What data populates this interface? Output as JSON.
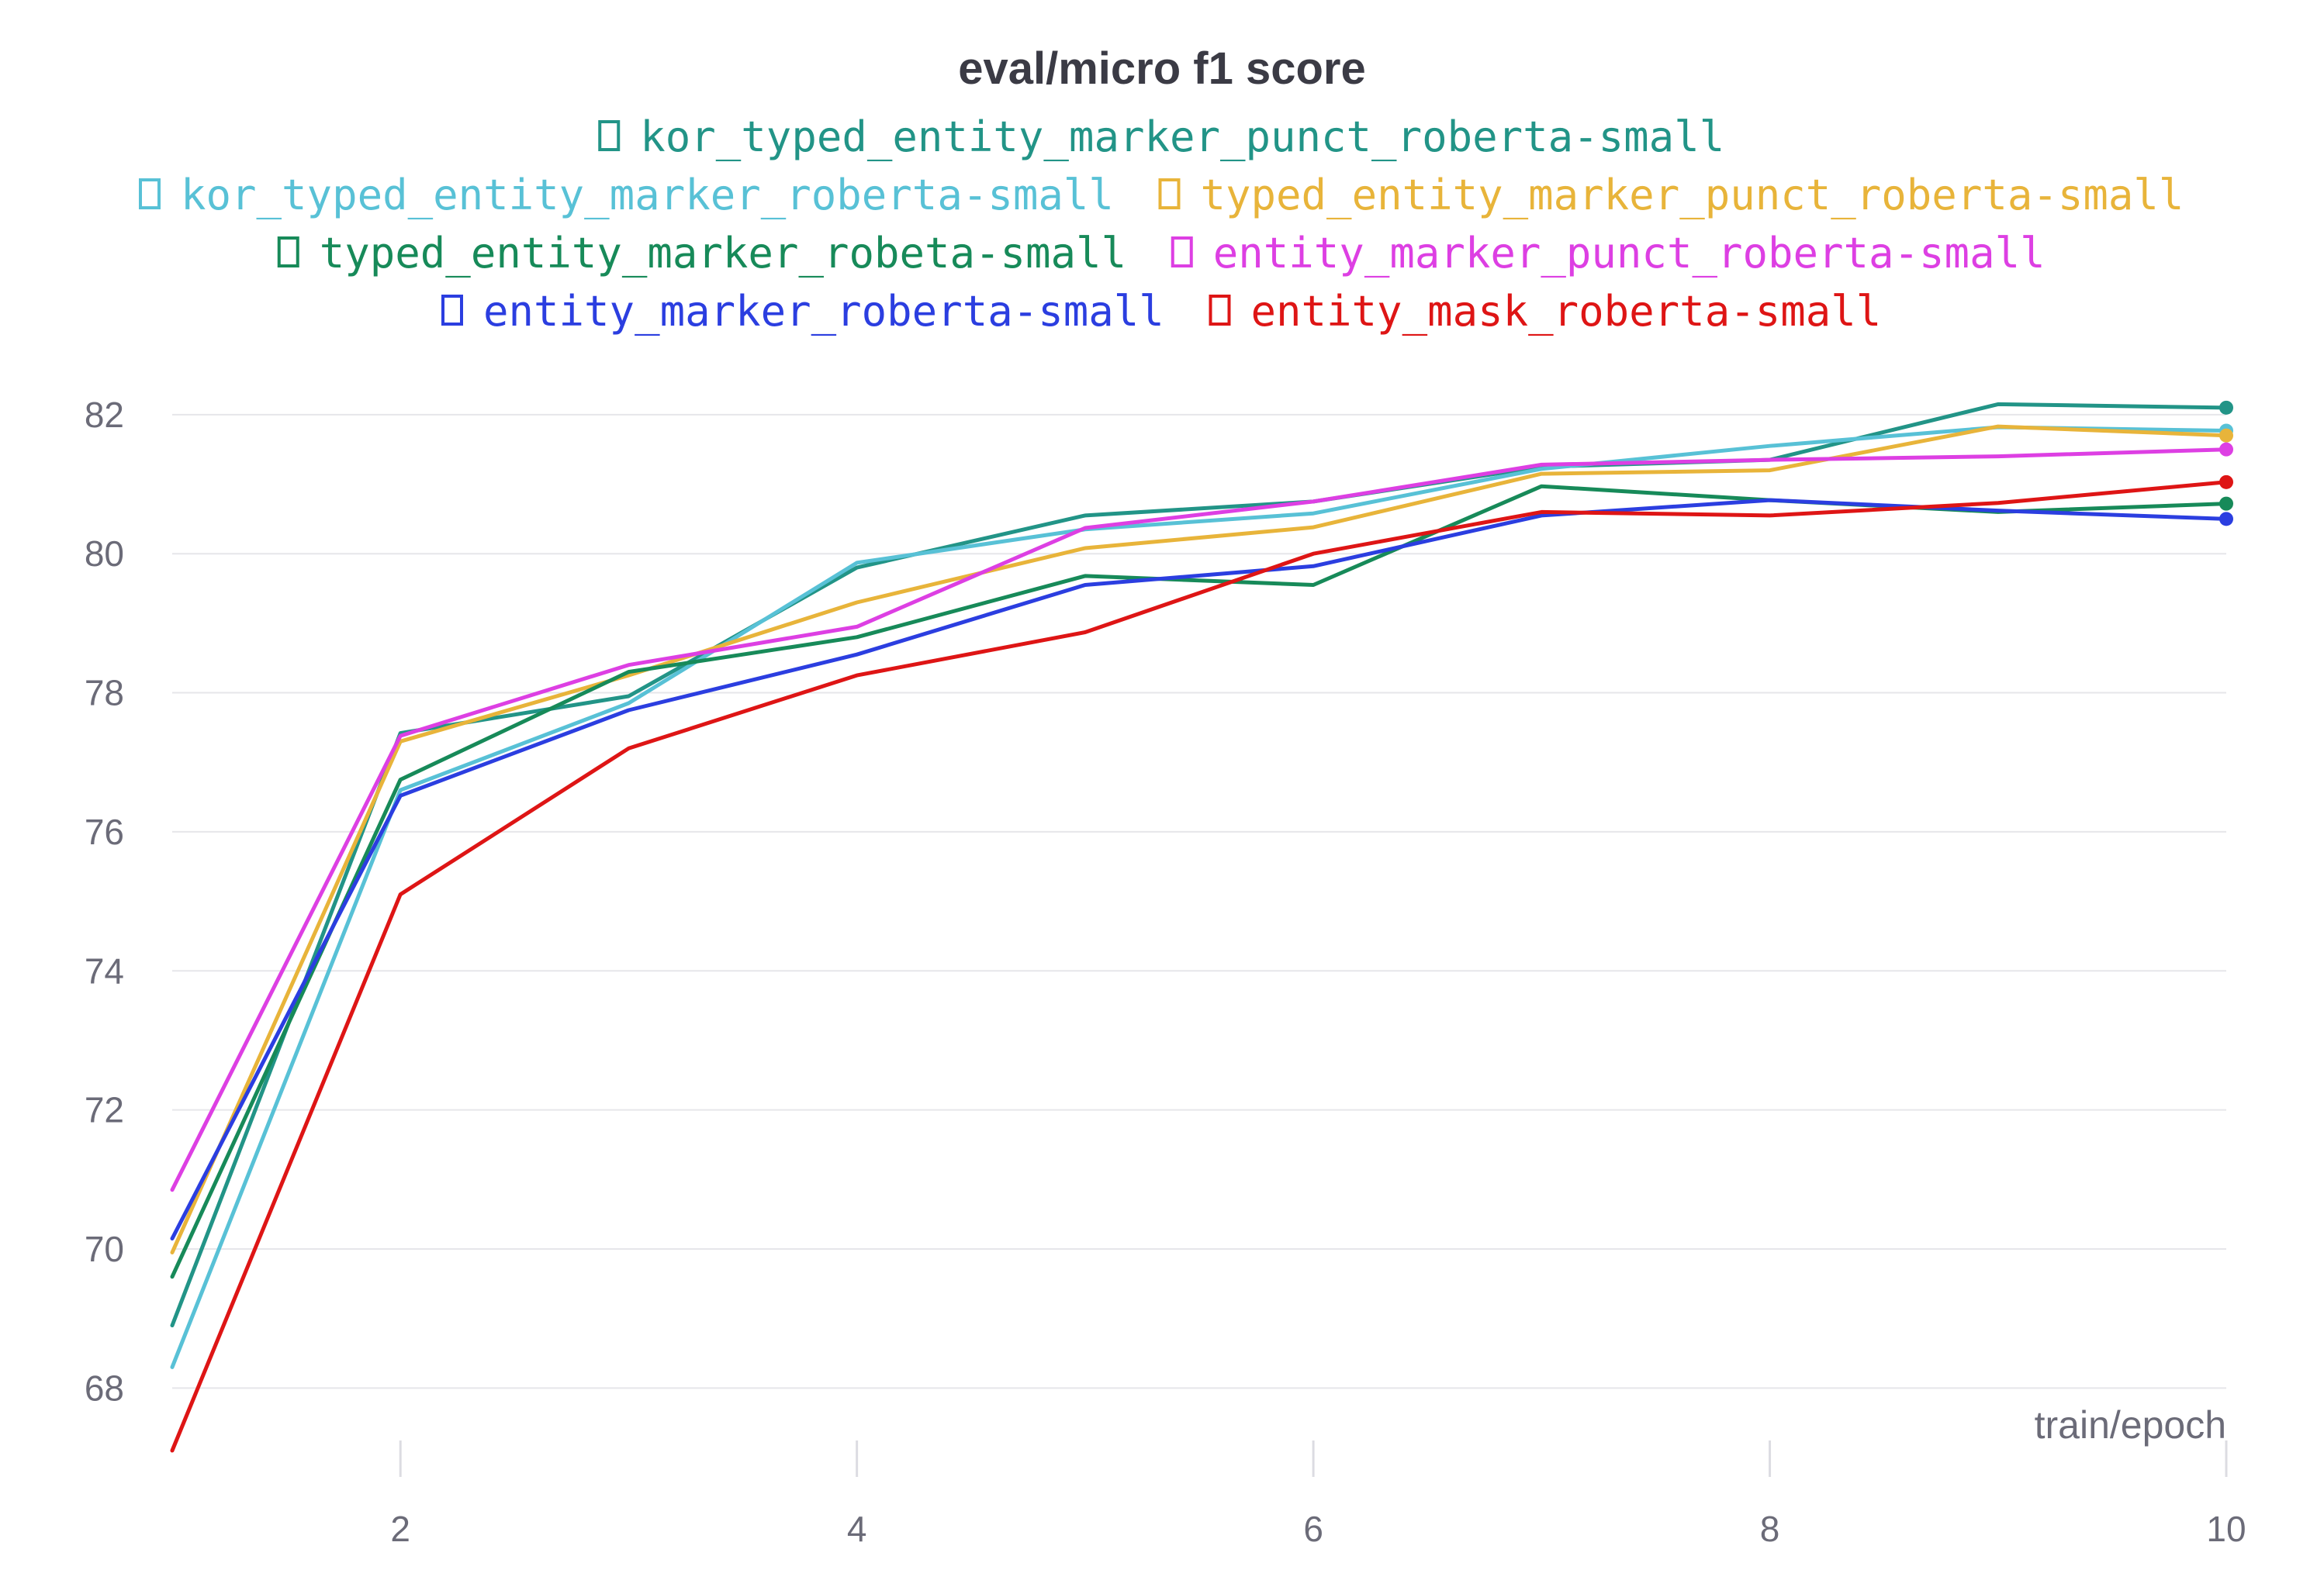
{
  "chart_data": {
    "type": "line",
    "title": "eval/micro f1 score",
    "xlabel": "train/epoch",
    "ylabel": "",
    "xlim": [
      1,
      10
    ],
    "ylim": [
      67,
      82.5
    ],
    "x_ticks": [
      2,
      4,
      6,
      8,
      10
    ],
    "y_ticks": [
      68,
      70,
      72,
      74,
      76,
      78,
      80,
      82
    ],
    "grid": "horizontal",
    "legend_position": "top",
    "x": [
      1,
      2,
      3,
      4,
      5,
      6,
      7,
      8,
      9,
      10
    ],
    "series": [
      {
        "name": "kor_typed_entity_marker_punct_roberta-small",
        "color": "#229487",
        "values": [
          68.9,
          77.42,
          77.95,
          79.8,
          80.55,
          80.75,
          81.25,
          81.35,
          82.15,
          82.1
        ]
      },
      {
        "name": "kor_typed_entity_marker_roberta-small",
        "color": "#58c1d6",
        "values": [
          68.3,
          76.6,
          77.85,
          79.87,
          80.35,
          80.58,
          81.22,
          81.55,
          81.82,
          81.77
        ]
      },
      {
        "name": "typed_entity_marker_punct_roberta-small",
        "color": "#e8b43a",
        "values": [
          69.95,
          77.3,
          78.25,
          79.3,
          80.08,
          80.38,
          81.15,
          81.2,
          81.83,
          81.7
        ]
      },
      {
        "name": "typed_entity_marker_robeta-small",
        "color": "#178a59",
        "values": [
          69.6,
          76.75,
          78.3,
          78.8,
          79.68,
          79.55,
          80.97,
          80.77,
          80.6,
          80.72
        ]
      },
      {
        "name": "entity_marker_punct_roberta-small",
        "color": "#dd3fe3",
        "values": [
          70.85,
          77.38,
          78.4,
          78.95,
          80.37,
          80.75,
          81.28,
          81.35,
          81.4,
          81.5
        ]
      },
      {
        "name": "entity_marker_roberta-small",
        "color": "#2b3ee0",
        "values": [
          70.15,
          76.52,
          77.75,
          78.55,
          79.55,
          79.82,
          80.55,
          80.77,
          80.62,
          80.5
        ]
      },
      {
        "name": "entity_mask_roberta-small",
        "color": "#de1515",
        "values": [
          67.1,
          75.1,
          77.2,
          78.25,
          78.87,
          80.0,
          80.6,
          80.55,
          80.73,
          81.03
        ]
      }
    ]
  }
}
